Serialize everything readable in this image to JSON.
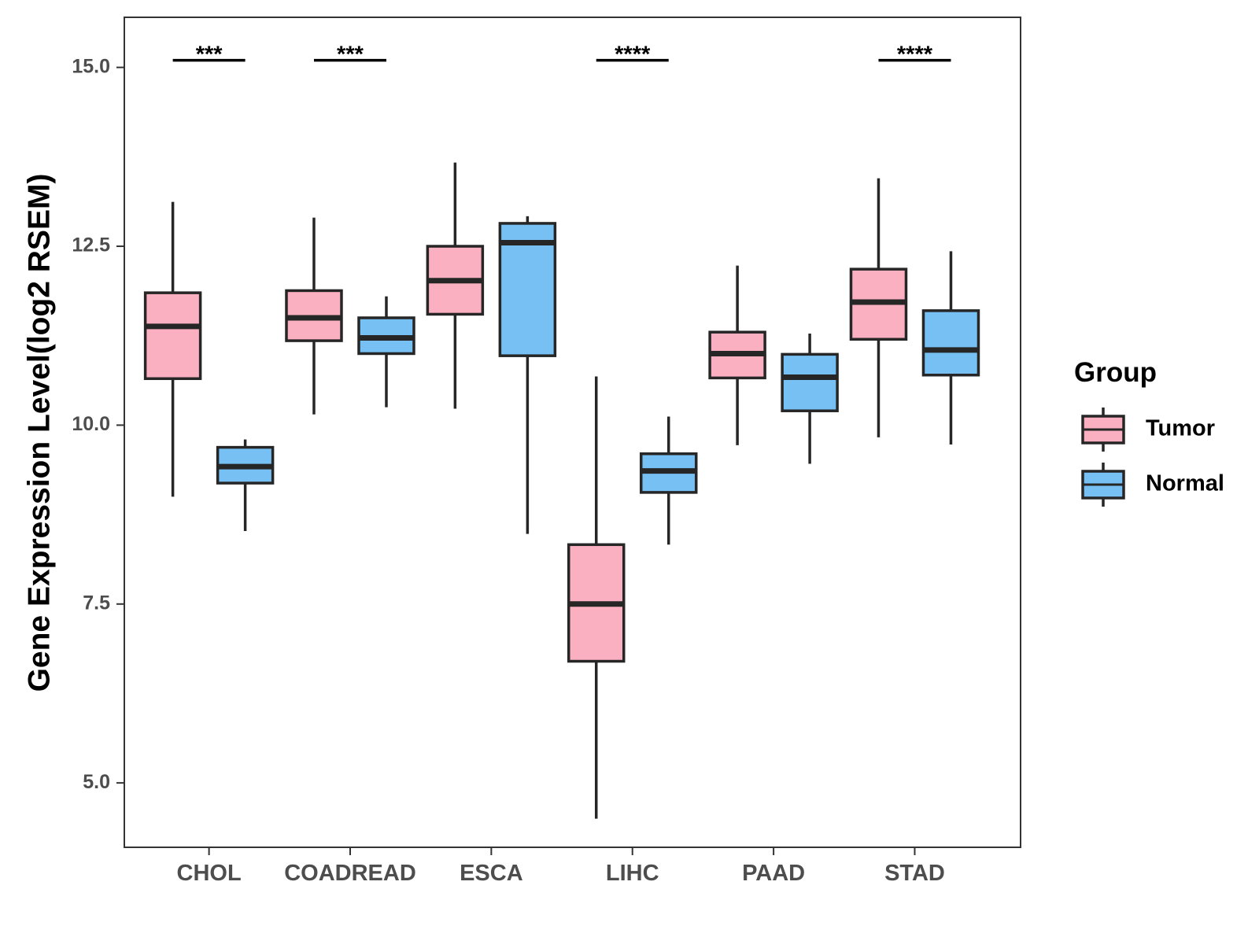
{
  "chart_data": {
    "type": "boxplot",
    "ylabel": "Gene Expression Level(log2 RSEM)",
    "xlabel": "",
    "ylim": [
      4.1,
      15.7
    ],
    "yticks": [
      5.0,
      7.5,
      10.0,
      12.5,
      15.0
    ],
    "ytick_labels": [
      "5.0",
      "7.5",
      "10.0",
      "12.5",
      "15.0"
    ],
    "grid": false,
    "categories": [
      "CHOL",
      "COADREAD",
      "ESCA",
      "LIHC",
      "PAAD",
      "STAD"
    ],
    "series": [
      {
        "name": "Tumor",
        "color": "#FBB0C2",
        "boxes": [
          {
            "min": 9.0,
            "q1": 10.65,
            "median": 11.38,
            "q3": 11.85,
            "max": 13.12
          },
          {
            "min": 10.15,
            "q1": 11.18,
            "median": 11.5,
            "q3": 11.88,
            "max": 12.9
          },
          {
            "min": 10.23,
            "q1": 11.55,
            "median": 12.02,
            "q3": 12.5,
            "max": 13.67
          },
          {
            "min": 4.5,
            "q1": 6.7,
            "median": 7.5,
            "q3": 8.33,
            "max": 10.68
          },
          {
            "min": 9.72,
            "q1": 10.66,
            "median": 11.0,
            "q3": 11.3,
            "max": 12.23
          },
          {
            "min": 9.83,
            "q1": 11.2,
            "median": 11.72,
            "q3": 12.18,
            "max": 13.45
          }
        ]
      },
      {
        "name": "Normal",
        "color": "#77C0F4",
        "boxes": [
          {
            "min": 8.52,
            "q1": 9.19,
            "median": 9.42,
            "q3": 9.69,
            "max": 9.8
          },
          {
            "min": 10.25,
            "q1": 11.0,
            "median": 11.22,
            "q3": 11.5,
            "max": 11.8
          },
          {
            "min": 8.48,
            "q1": 10.97,
            "median": 12.55,
            "q3": 12.82,
            "max": 12.92
          },
          {
            "min": 8.33,
            "q1": 9.06,
            "median": 9.36,
            "q3": 9.6,
            "max": 10.12
          },
          {
            "min": 9.46,
            "q1": 10.2,
            "median": 10.67,
            "q3": 10.99,
            "max": 11.28
          },
          {
            "min": 9.73,
            "q1": 10.7,
            "median": 11.05,
            "q3": 11.6,
            "max": 12.43
          }
        ]
      }
    ],
    "significance": [
      {
        "category": "CHOL",
        "label": "***",
        "y": 15.1
      },
      {
        "category": "COADREAD",
        "label": "***",
        "y": 15.1
      },
      {
        "category": "LIHC",
        "label": "****",
        "y": 15.1
      },
      {
        "category": "STAD",
        "label": "****",
        "y": 15.1
      }
    ],
    "legend": {
      "title": "Group",
      "position": "right",
      "entries": [
        "Tumor",
        "Normal"
      ]
    }
  }
}
